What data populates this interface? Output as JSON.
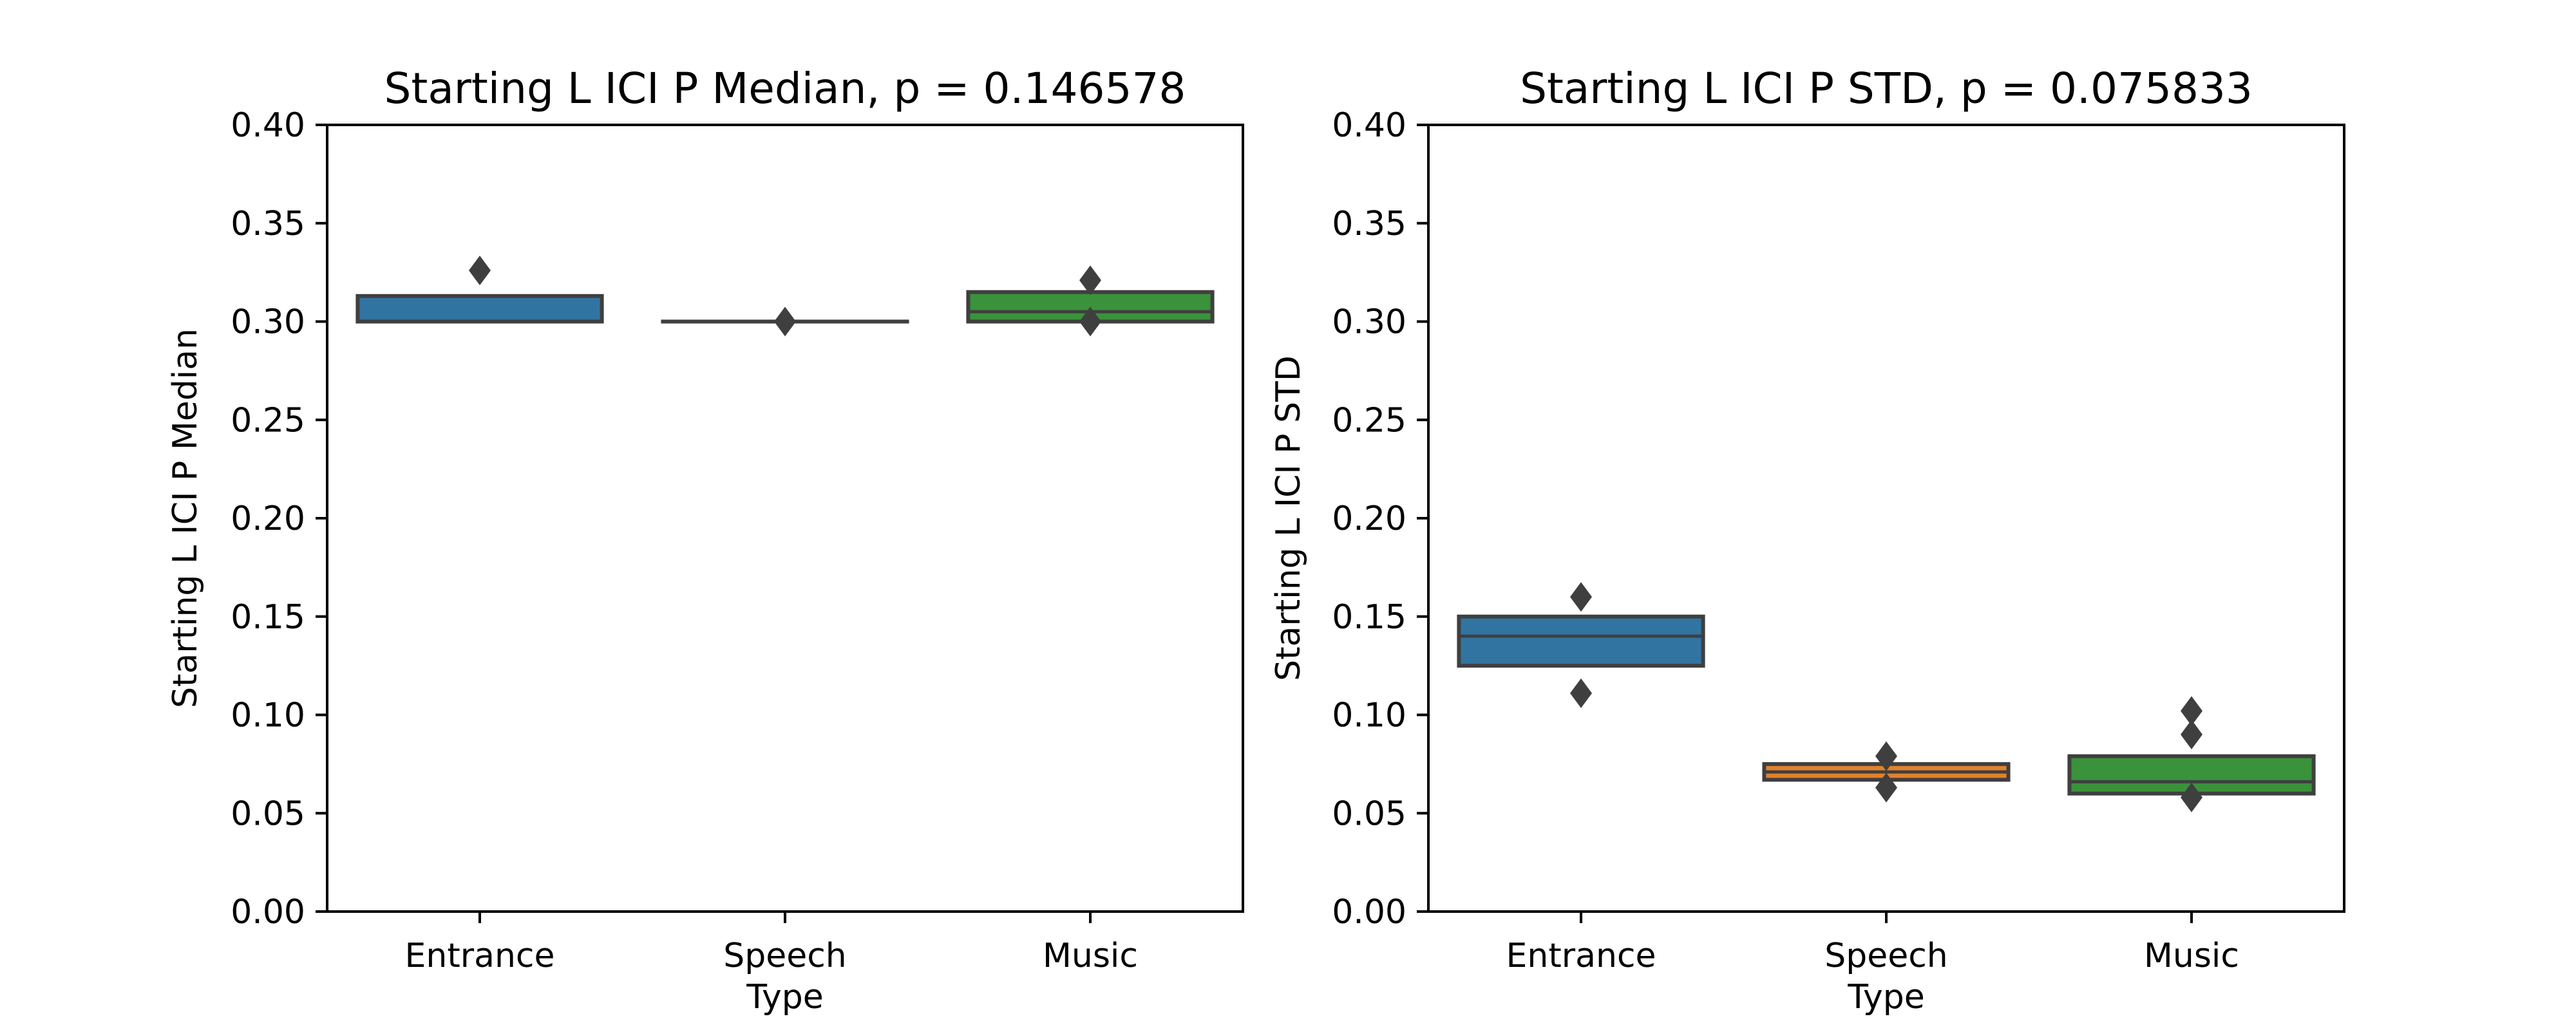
{
  "chart_data": [
    {
      "type": "boxen",
      "title": "Starting L ICI P Median, p = 0.146578",
      "xlabel": "Type",
      "ylabel": "Starting L ICI P Median",
      "categories": [
        "Entrance",
        "Speech",
        "Music"
      ],
      "ylim": [
        0.0,
        0.4
      ],
      "yticks": [
        0.0,
        0.05,
        0.1,
        0.15,
        0.2,
        0.25,
        0.3,
        0.35,
        0.4
      ],
      "ytick_labels": [
        "0.00",
        "0.05",
        "0.10",
        "0.15",
        "0.20",
        "0.25",
        "0.30",
        "0.35",
        "0.40"
      ],
      "grid": false,
      "boxes": [
        {
          "category": "Entrance",
          "low": 0.3,
          "high": 0.313,
          "median": 0.3,
          "outliers": [
            0.326
          ],
          "color": "#3274a1"
        },
        {
          "category": "Speech",
          "low": 0.3,
          "high": 0.3,
          "median": 0.3,
          "outliers": [
            0.3
          ],
          "color": "#e1812c"
        },
        {
          "category": "Music",
          "low": 0.3,
          "high": 0.315,
          "median": 0.305,
          "outliers": [
            0.321,
            0.3
          ],
          "color": "#3a923a"
        }
      ]
    },
    {
      "type": "boxen",
      "title": "Starting L ICI P STD, p = 0.075833",
      "xlabel": "Type",
      "ylabel": "Starting L ICI P STD",
      "categories": [
        "Entrance",
        "Speech",
        "Music"
      ],
      "ylim": [
        0.0,
        0.4
      ],
      "yticks": [
        0.0,
        0.05,
        0.1,
        0.15,
        0.2,
        0.25,
        0.3,
        0.35,
        0.4
      ],
      "ytick_labels": [
        "0.00",
        "0.05",
        "0.10",
        "0.15",
        "0.20",
        "0.25",
        "0.30",
        "0.35",
        "0.40"
      ],
      "grid": false,
      "boxes": [
        {
          "category": "Entrance",
          "low": 0.125,
          "high": 0.15,
          "median": 0.14,
          "outliers": [
            0.16,
            0.111
          ],
          "color": "#3274a1"
        },
        {
          "category": "Speech",
          "low": 0.067,
          "high": 0.075,
          "median": 0.071,
          "outliers": [
            0.079,
            0.063
          ],
          "color": "#e1812c"
        },
        {
          "category": "Music",
          "low": 0.06,
          "high": 0.079,
          "median": 0.066,
          "outliers": [
            0.102,
            0.09,
            0.058
          ],
          "color": "#3a923a"
        }
      ]
    }
  ]
}
